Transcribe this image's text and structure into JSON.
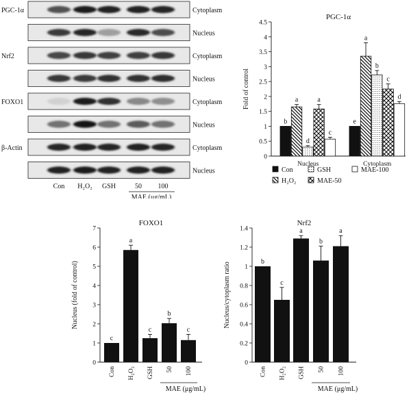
{
  "blot_panel": {
    "rows": [
      {
        "protein": "PGC-1α",
        "fraction": "Cytoplasm",
        "bands": [
          0.7,
          0.95,
          0.92,
          0.92,
          0.9
        ]
      },
      {
        "protein": "",
        "fraction": "Nucleus",
        "bands": [
          0.8,
          0.9,
          0.35,
          0.88,
          0.72
        ]
      },
      {
        "protein": "Nrf2",
        "fraction": "Cytoplasm",
        "bands": [
          0.75,
          0.82,
          0.78,
          0.78,
          0.82
        ]
      },
      {
        "protein": "",
        "fraction": "Nucleus",
        "bands": [
          0.82,
          0.8,
          0.85,
          0.85,
          0.86
        ]
      },
      {
        "protein": "FOXO1",
        "fraction": "Cytoplasm",
        "bands": [
          0.12,
          0.95,
          0.85,
          0.45,
          0.42
        ]
      },
      {
        "protein": "",
        "fraction": "Nucleus",
        "bands": [
          0.55,
          0.98,
          0.55,
          0.65,
          0.55
        ]
      },
      {
        "protein": "β-Actin",
        "fraction": "Cytoplasm",
        "bands": [
          0.9,
          0.92,
          0.9,
          0.92,
          0.9
        ]
      },
      {
        "protein": "",
        "fraction": "Nucleus",
        "bands": [
          0.92,
          0.93,
          0.92,
          0.92,
          0.92
        ]
      }
    ],
    "lanes": [
      "Con",
      "H₂O₂",
      "GSH",
      "50",
      "100"
    ],
    "mae_label": "MAE (μg/mL)"
  },
  "chart_data": [
    {
      "type": "bar",
      "title": "PGC-1α",
      "xlabel": "",
      "ylabel": "Fold of control",
      "ylim": [
        0,
        4.5
      ],
      "yticks": [
        0,
        0.5,
        1,
        1.5,
        2,
        2.5,
        3,
        3.5,
        4,
        4.5
      ],
      "categories": [
        "Nucleus",
        "Cytoplasm"
      ],
      "series": [
        {
          "name": "Con",
          "pattern": "solid",
          "values": [
            1.0,
            1.0
          ],
          "errors": [
            0,
            0
          ],
          "letters": [
            "b",
            "e"
          ]
        },
        {
          "name": "H₂O₂",
          "pattern": "diag-back",
          "values": [
            1.65,
            3.35
          ],
          "errors": [
            0.08,
            0.45
          ],
          "letters": [
            "a",
            "a"
          ]
        },
        {
          "name": "GSH",
          "pattern": "dots",
          "values": [
            0.3,
            2.72
          ],
          "errors": [
            0.05,
            0.15
          ],
          "letters": [
            "d",
            "b"
          ]
        },
        {
          "name": "MAE-50",
          "pattern": "crosshatch",
          "values": [
            1.58,
            2.25
          ],
          "errors": [
            0.15,
            0.17
          ],
          "letters": [
            "a",
            "c"
          ]
        },
        {
          "name": "MAE-100",
          "pattern": "open",
          "values": [
            0.57,
            1.76
          ],
          "errors": [
            0.06,
            0.07
          ],
          "letters": [
            "c",
            "d"
          ]
        }
      ],
      "legend": "below"
    },
    {
      "type": "bar",
      "title": "FOXO1",
      "xlabel": "MAE (μg/mL)",
      "ylabel": "Nucleus (fold of control)",
      "ylim": [
        0,
        7
      ],
      "yticks": [
        0,
        1,
        2,
        3,
        4,
        5,
        6,
        7
      ],
      "categories": [
        "Con",
        "H₂O₂",
        "GSH",
        "50",
        "100"
      ],
      "values": [
        1.0,
        5.85,
        1.25,
        2.03,
        1.15
      ],
      "errors": [
        0,
        0.25,
        0.2,
        0.25,
        0.3
      ],
      "letters": [
        "c",
        "a",
        "c",
        "b",
        "c"
      ]
    },
    {
      "type": "bar",
      "title": "Nrf2",
      "xlabel": "MAE (μg/mL)",
      "ylabel": "Nucleus/cytoplasm ratio",
      "ylim": [
        0,
        1.4
      ],
      "yticks": [
        0,
        0.2,
        0.4,
        0.6,
        0.8,
        1,
        1.2,
        1.4
      ],
      "categories": [
        "Con",
        "H₂O₂",
        "GSH",
        "50",
        "100"
      ],
      "values": [
        1.0,
        0.65,
        1.29,
        1.06,
        1.21
      ],
      "errors": [
        0,
        0.13,
        0.03,
        0.15,
        0.11
      ],
      "letters": [
        "b",
        "c",
        "a",
        "b",
        "a"
      ]
    }
  ]
}
